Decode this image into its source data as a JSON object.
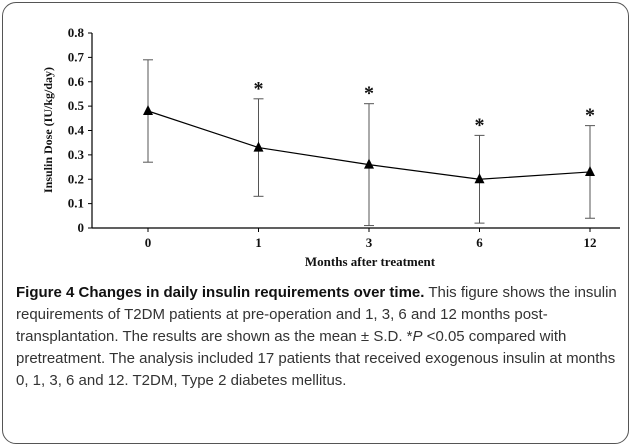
{
  "chart_data": {
    "type": "line",
    "categories": [
      "0",
      "1",
      "3",
      "6",
      "12"
    ],
    "values": [
      0.48,
      0.33,
      0.26,
      0.2,
      0.23
    ],
    "errors": [
      0.21,
      0.2,
      0.25,
      0.18,
      0.19
    ],
    "significance": [
      null,
      "*",
      "*",
      "*",
      "*"
    ],
    "color": "#000000",
    "ylim": [
      0,
      0.8
    ],
    "yticks": [
      0,
      0.1,
      0.2,
      0.3,
      0.4,
      0.5,
      0.6,
      0.7,
      0.8
    ],
    "xlabel": "Months after treatment",
    "ylabel": "Insulin Dose (IU/kg/day)"
  },
  "caption": {
    "title": "Figure 4 Changes in daily insulin requirements over time.",
    "text_before": " This figure shows the insulin requirements of T2DM patients at pre-operation and 1, 3, 6 and 12 months post-transplantation. The results are shown as the mean ± S.D. *",
    "italic": "P",
    "text_after": " <0.05 compared with pretreatment. The analysis included 17 patients that received exogenous insulin at months 0, 1, 3, 6 and 12. T2DM, Type 2 diabetes mellitus."
  }
}
